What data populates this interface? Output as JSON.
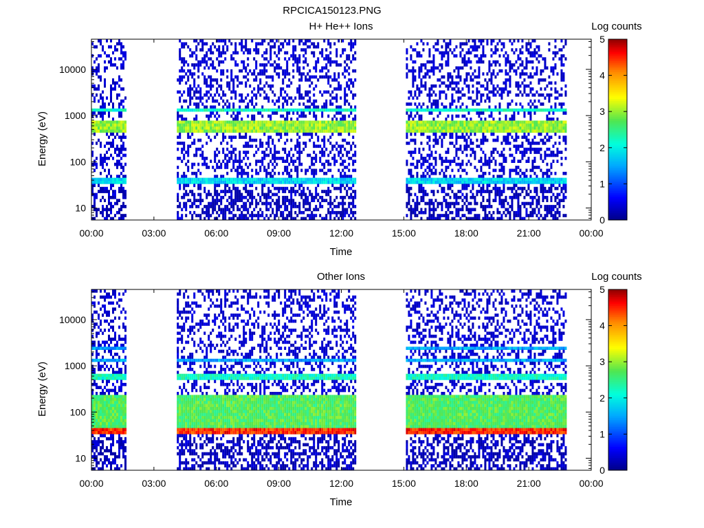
{
  "figure_title": "RPCICA150123.PNG",
  "chart_data": [
    {
      "type": "heatmap",
      "title": "H+ He++ Ions",
      "xlabel": "Time",
      "ylabel": "Energy (eV)",
      "x_ticks": [
        "00:00",
        "03:00",
        "06:00",
        "09:00",
        "12:00",
        "15:00",
        "18:00",
        "21:00",
        "00:00"
      ],
      "x_range_hours": [
        0,
        24
      ],
      "y_scale": "log",
      "y_range": [
        5.5,
        45000
      ],
      "y_ticks": [
        10,
        100,
        1000,
        10000
      ],
      "y_tick_labels": [
        "10",
        "100",
        "1000",
        "10000"
      ],
      "colorbar": {
        "title": "Log counts",
        "range": [
          0,
          5
        ],
        "ticks": [
          "0",
          "1",
          "2",
          "3",
          "4",
          "5"
        ],
        "colormap": "rainbow"
      },
      "data_intervals_hours": [
        [
          0.0,
          1.6
        ],
        [
          4.1,
          12.7
        ],
        [
          15.1,
          22.8
        ]
      ],
      "bands": [
        {
          "energy_eV": [
            33,
            45
          ],
          "log_counts": 1.8,
          "intervals": [
            [
              0.0,
              1.6
            ],
            [
              4.1,
              12.7
            ],
            [
              15.1,
              22.8
            ]
          ]
        },
        {
          "energy_eV": [
            450,
            750
          ],
          "log_counts": 3.0,
          "intervals": [
            [
              0.0,
              1.6
            ],
            [
              4.1,
              12.7
            ],
            [
              15.1,
              22.8
            ]
          ]
        },
        {
          "energy_eV": [
            1200,
            1400
          ],
          "log_counts": 2.2,
          "intervals": [
            [
              0.0,
              1.6
            ],
            [
              4.1,
              12.7
            ],
            [
              15.1,
              22.8
            ]
          ]
        }
      ],
      "background_log_counts": 0.2
    },
    {
      "type": "heatmap",
      "title": "Other Ions",
      "xlabel": "Time",
      "ylabel": "Energy (eV)",
      "x_ticks": [
        "00:00",
        "03:00",
        "06:00",
        "09:00",
        "12:00",
        "15:00",
        "18:00",
        "21:00",
        "00:00"
      ],
      "x_range_hours": [
        0,
        24
      ],
      "y_scale": "log",
      "y_range": [
        5.5,
        45000
      ],
      "y_ticks": [
        10,
        100,
        1000,
        10000
      ],
      "y_tick_labels": [
        "10",
        "100",
        "1000",
        "10000"
      ],
      "colorbar": {
        "title": "Log counts",
        "range": [
          0,
          5
        ],
        "ticks": [
          "0",
          "1",
          "2",
          "3",
          "4",
          "5"
        ],
        "colormap": "rainbow"
      },
      "data_intervals_hours": [
        [
          0.0,
          1.6
        ],
        [
          4.1,
          12.7
        ],
        [
          15.1,
          22.8
        ]
      ],
      "bands": [
        {
          "energy_eV": [
            32,
            45
          ],
          "log_counts": 4.5,
          "intervals": [
            [
              0.0,
              1.6
            ],
            [
              4.1,
              12.7
            ],
            [
              15.1,
              22.8
            ]
          ]
        },
        {
          "energy_eV": [
            45,
            250
          ],
          "log_counts": 2.7,
          "intervals": [
            [
              0.0,
              1.6
            ],
            [
              4.1,
              12.7
            ],
            [
              15.1,
              22.8
            ]
          ]
        },
        {
          "energy_eV": [
            480,
            700
          ],
          "log_counts": 2.2,
          "intervals": [
            [
              0.0,
              1.6
            ],
            [
              4.1,
              12.7
            ],
            [
              15.1,
              22.8
            ]
          ]
        },
        {
          "energy_eV": [
            1200,
            1400
          ],
          "log_counts": 1.5,
          "intervals": [
            [
              0.0,
              1.6
            ],
            [
              4.1,
              12.7
            ],
            [
              15.1,
              22.8
            ]
          ]
        },
        {
          "energy_eV": [
            2200,
            2700
          ],
          "log_counts": 1.5,
          "intervals": [
            [
              0.0,
              1.6
            ],
            [
              15.1,
              22.8
            ]
          ]
        }
      ],
      "background_log_counts": 0.2
    }
  ]
}
